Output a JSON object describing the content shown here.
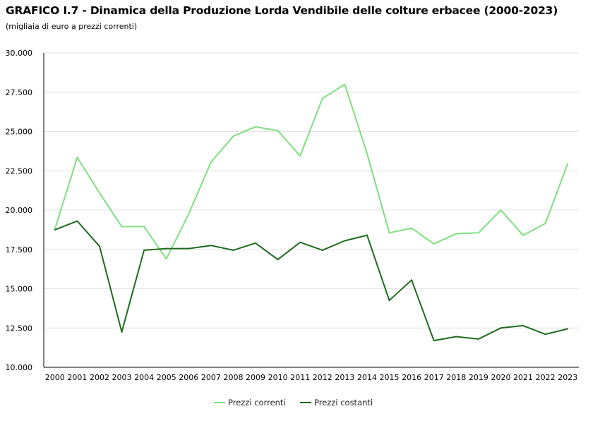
{
  "chart_data": {
    "type": "line",
    "title": "GRAFICO I.7 - Dinamica della Produzione Lorda Vendibile delle colture erbacee (2000-2023)",
    "subtitle": "(migliaia di euro a prezzi correnti)",
    "xlabel": "",
    "ylabel": "",
    "categories": [
      "2000",
      "2001",
      "2002",
      "2003",
      "2004",
      "2005",
      "2006",
      "2007",
      "2008",
      "2009",
      "2010",
      "2011",
      "2012",
      "2013",
      "2014",
      "2015",
      "2016",
      "2017",
      "2018",
      "2019",
      "2020",
      "2021",
      "2022",
      "2023"
    ],
    "ylim": [
      10000,
      30000
    ],
    "yticks": [
      {
        "value": 10000,
        "label": "10.000"
      },
      {
        "value": 12500,
        "label": "12.500"
      },
      {
        "value": 15000,
        "label": "15.000"
      },
      {
        "value": 17500,
        "label": "17.500"
      },
      {
        "value": 20000,
        "label": "20.000"
      },
      {
        "value": 22500,
        "label": "22.500"
      },
      {
        "value": 25000,
        "label": "25.000"
      },
      {
        "value": 27500,
        "label": "27.500"
      },
      {
        "value": 30000,
        "label": "30.000"
      }
    ],
    "grid": true,
    "legend_position": "bottom-center",
    "series": [
      {
        "name": "Prezzi correnti",
        "color": "#7fdf7f",
        "values": [
          18800,
          23350,
          21100,
          18950,
          18950,
          16900,
          19750,
          23050,
          24700,
          25300,
          25050,
          23450,
          27100,
          28000,
          23600,
          18550,
          18850,
          17850,
          18500,
          18550,
          20000,
          18400,
          19150,
          22950
        ]
      },
      {
        "name": "Prezzi costanti",
        "color": "#1e6b1e",
        "values": [
          18750,
          19300,
          17700,
          12250,
          17450,
          17550,
          17550,
          17750,
          17450,
          17900,
          16850,
          17950,
          17450,
          18050,
          18400,
          14250,
          15550,
          11700,
          11950,
          11800,
          12500,
          12650,
          12100,
          12450
        ]
      }
    ]
  }
}
